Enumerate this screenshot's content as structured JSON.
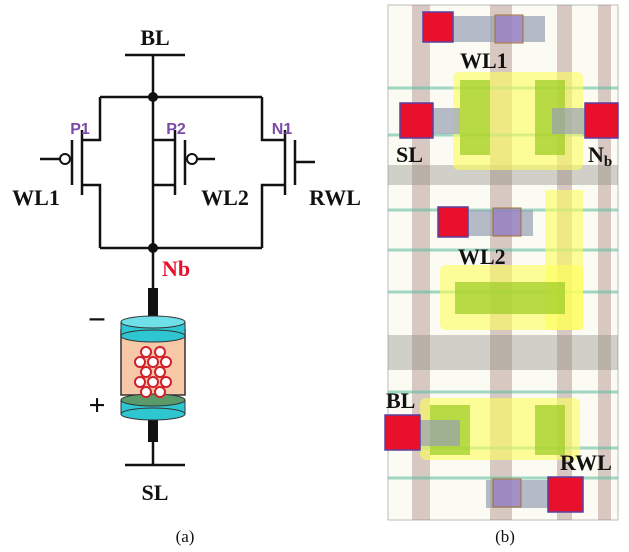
{
  "panel_a": {
    "bitline": "BL",
    "sourceline": "SL",
    "transistors": [
      {
        "label": "P1",
        "gate": "WL1"
      },
      {
        "label": "P2",
        "gate": "WL2"
      },
      {
        "label": "N1",
        "gate": "RWL"
      }
    ],
    "node": "Nb",
    "polarity_top": "−",
    "polarity_bottom": "+",
    "caption": "(a)"
  },
  "panel_b": {
    "labels": {
      "wl1": "WL1",
      "sl": "SL",
      "nb": "N",
      "nb_sub": "b",
      "wl2": "WL2",
      "bl": "BL",
      "rwl": "RWL"
    },
    "caption": "(b)"
  }
}
